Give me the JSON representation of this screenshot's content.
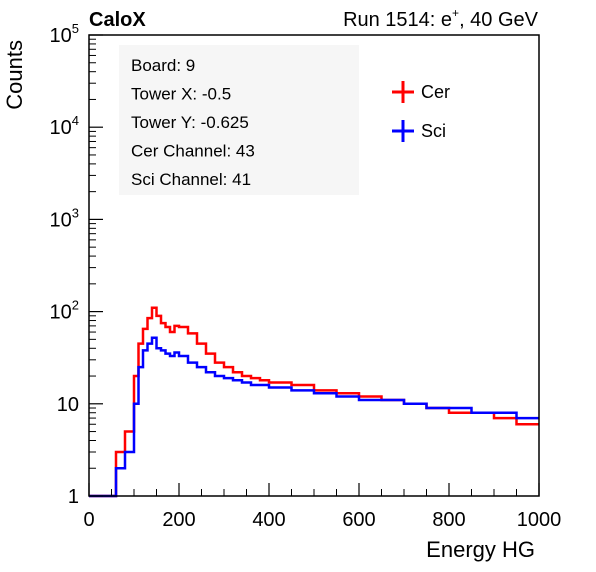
{
  "header": {
    "experiment": "CaloX",
    "run_prefix": "Run 1514: e",
    "run_superscript": "+",
    "run_suffix": ", 40 GeV"
  },
  "info_box": {
    "lines": [
      "Board: 9",
      "Tower X: -0.5",
      "Tower Y: -0.625",
      "Cer Channel: 43",
      "Sci Channel: 41"
    ]
  },
  "chart_data": {
    "type": "line",
    "style": "step histogram",
    "xlabel": "Energy HG",
    "ylabel": "Counts",
    "xlim": [
      0,
      1000
    ],
    "ylim": [
      1,
      100000
    ],
    "yscale": "log",
    "grid": false,
    "legend_position": "top-right",
    "x_ticks": [
      0,
      200,
      400,
      600,
      800,
      1000
    ],
    "y_ticks": [
      {
        "value": 1,
        "base": "1",
        "exp": ""
      },
      {
        "value": 10,
        "base": "10",
        "exp": ""
      },
      {
        "value": 100,
        "base": "10",
        "exp": "2"
      },
      {
        "value": 1000,
        "base": "10",
        "exp": "3"
      },
      {
        "value": 10000,
        "base": "10",
        "exp": "4"
      },
      {
        "value": 100000,
        "base": "10",
        "exp": "5"
      }
    ],
    "bin_edges": [
      0,
      20,
      40,
      60,
      80,
      100,
      110,
      120,
      130,
      140,
      150,
      160,
      170,
      180,
      190,
      200,
      220,
      240,
      260,
      280,
      300,
      320,
      340,
      360,
      380,
      400,
      450,
      500,
      550,
      600,
      650,
      700,
      750,
      800,
      850,
      900,
      950,
      1000
    ],
    "series": [
      {
        "name": "Cer",
        "color": "#ff0000",
        "values": [
          1,
          1,
          1,
          3,
          5,
          20,
          45,
          65,
          85,
          110,
          90,
          75,
          68,
          60,
          70,
          68,
          58,
          45,
          35,
          28,
          25,
          22,
          20,
          19,
          18,
          17,
          16,
          14,
          13,
          12,
          11,
          10,
          9,
          8,
          8,
          7,
          6
        ]
      },
      {
        "name": "Sci",
        "color": "#0000ff",
        "values": [
          1,
          1,
          1,
          2,
          3,
          10,
          25,
          38,
          45,
          52,
          40,
          38,
          35,
          33,
          36,
          33,
          28,
          25,
          22,
          20,
          19,
          18,
          17,
          16,
          16,
          15,
          14,
          13,
          12,
          11,
          11,
          10,
          9,
          9,
          8,
          8,
          7
        ]
      }
    ]
  }
}
